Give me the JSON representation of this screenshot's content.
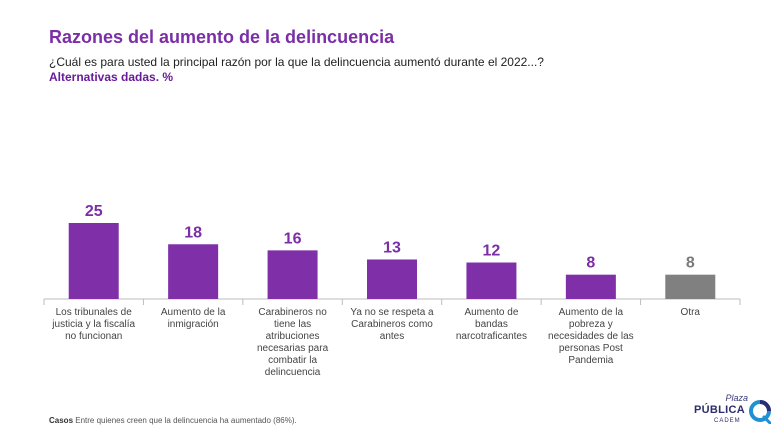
{
  "header": {
    "title": "Razones del aumento de la delincuencia",
    "question": "¿Cuál es para usted la principal razón por la que la delincuencia aumentó durante el 2022...?",
    "note": "Alternativas dadas. %"
  },
  "footer": {
    "label": "Casos",
    "text": "Entre quienes creen que la delincuencia ha aumentado (86%)."
  },
  "logo": {
    "line1": "Plaza",
    "line2": "PÚBLICA",
    "line3": "CADEM"
  },
  "colors": {
    "accent": "#7b2ea6",
    "bar": "#7f2fa8",
    "bar_other": "#808080",
    "label_other": "#7a7a7a"
  },
  "chart_data": {
    "type": "bar",
    "title": "Razones del aumento de la delincuencia",
    "xlabel": "",
    "ylabel": "%",
    "ylim": [
      0,
      25
    ],
    "categories": [
      [
        "Los tribunales de",
        "justicia y la fiscalía",
        "no funcionan"
      ],
      [
        "Aumento de la",
        "inmigración"
      ],
      [
        "Carabineros no",
        "tiene las",
        "atribuciones",
        "necesarias para",
        "combatir la",
        "delincuencia"
      ],
      [
        "Ya no se respeta a",
        "Carabineros como",
        "antes"
      ],
      [
        "Aumento de",
        "bandas",
        "narcotraficantes"
      ],
      [
        "Aumento de la",
        "pobreza y",
        "necesidades de las",
        "personas Post",
        "Pandemia"
      ],
      [
        "Otra"
      ]
    ],
    "values": [
      25,
      18,
      16,
      13,
      12,
      8,
      8
    ],
    "highlight": [
      true,
      true,
      true,
      true,
      true,
      true,
      false
    ]
  }
}
